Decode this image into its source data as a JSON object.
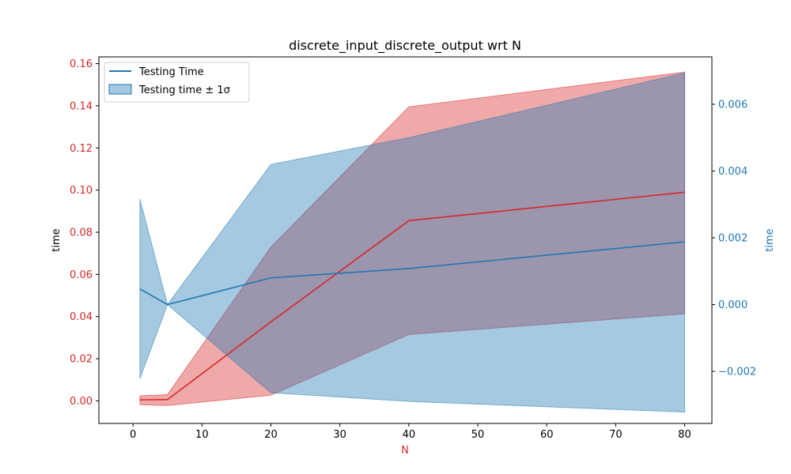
{
  "chart_data": {
    "type": "line",
    "title": "discrete_input_discrete_output wrt N",
    "xlabel": "N",
    "ylabel_left": "time",
    "ylabel_right": "time",
    "x": [
      1,
      5,
      20,
      40,
      80
    ],
    "xlim": [
      -4.95,
      83.95
    ],
    "xticks": [
      0,
      10,
      20,
      30,
      40,
      50,
      60,
      70,
      80
    ],
    "xtick_labels": [
      "0",
      "10",
      "20",
      "30",
      "40",
      "50",
      "60",
      "70",
      "80"
    ],
    "y_left_lim": [
      -0.0107,
      0.1632
    ],
    "y_left_ticks": [
      0.0,
      0.02,
      0.04,
      0.06,
      0.08,
      0.1,
      0.12,
      0.14,
      0.16
    ],
    "y_left_tick_labels": [
      "0.00",
      "0.02",
      "0.04",
      "0.06",
      "0.08",
      "0.10",
      "0.12",
      "0.14",
      "0.16"
    ],
    "y_right_lim": [
      -0.00356,
      0.00742
    ],
    "y_right_ticks": [
      -0.002,
      0.0,
      0.002,
      0.004,
      0.006
    ],
    "y_right_tick_labels": [
      "−0.002",
      "0.000",
      "0.002",
      "0.004",
      "0.006"
    ],
    "grid": false,
    "legend_position": "upper-left",
    "series": [
      {
        "axis": "left",
        "mean": [
          0.0005,
          0.0006,
          0.0375,
          0.0855,
          0.099
        ],
        "lower": [
          -0.0018,
          -0.0022,
          0.0027,
          0.0315,
          0.0413
        ],
        "upper": [
          0.0024,
          0.003,
          0.073,
          0.1395,
          0.156
        ],
        "color": "#d62728"
      },
      {
        "axis": "right",
        "name": "Testing Time",
        "band_name": "Testing time ± 1σ",
        "mean": [
          0.00047,
          0.0,
          0.0008,
          0.00108,
          0.00188
        ],
        "lower": [
          -0.00222,
          0.0,
          -0.00264,
          -0.0029,
          -0.00322
        ],
        "upper": [
          0.00316,
          0.0,
          0.0042,
          0.005,
          0.00694
        ],
        "color": "#1f77b4"
      }
    ]
  },
  "colors": {
    "left_axis": "#d62728",
    "right_axis": "#1f77b4"
  }
}
